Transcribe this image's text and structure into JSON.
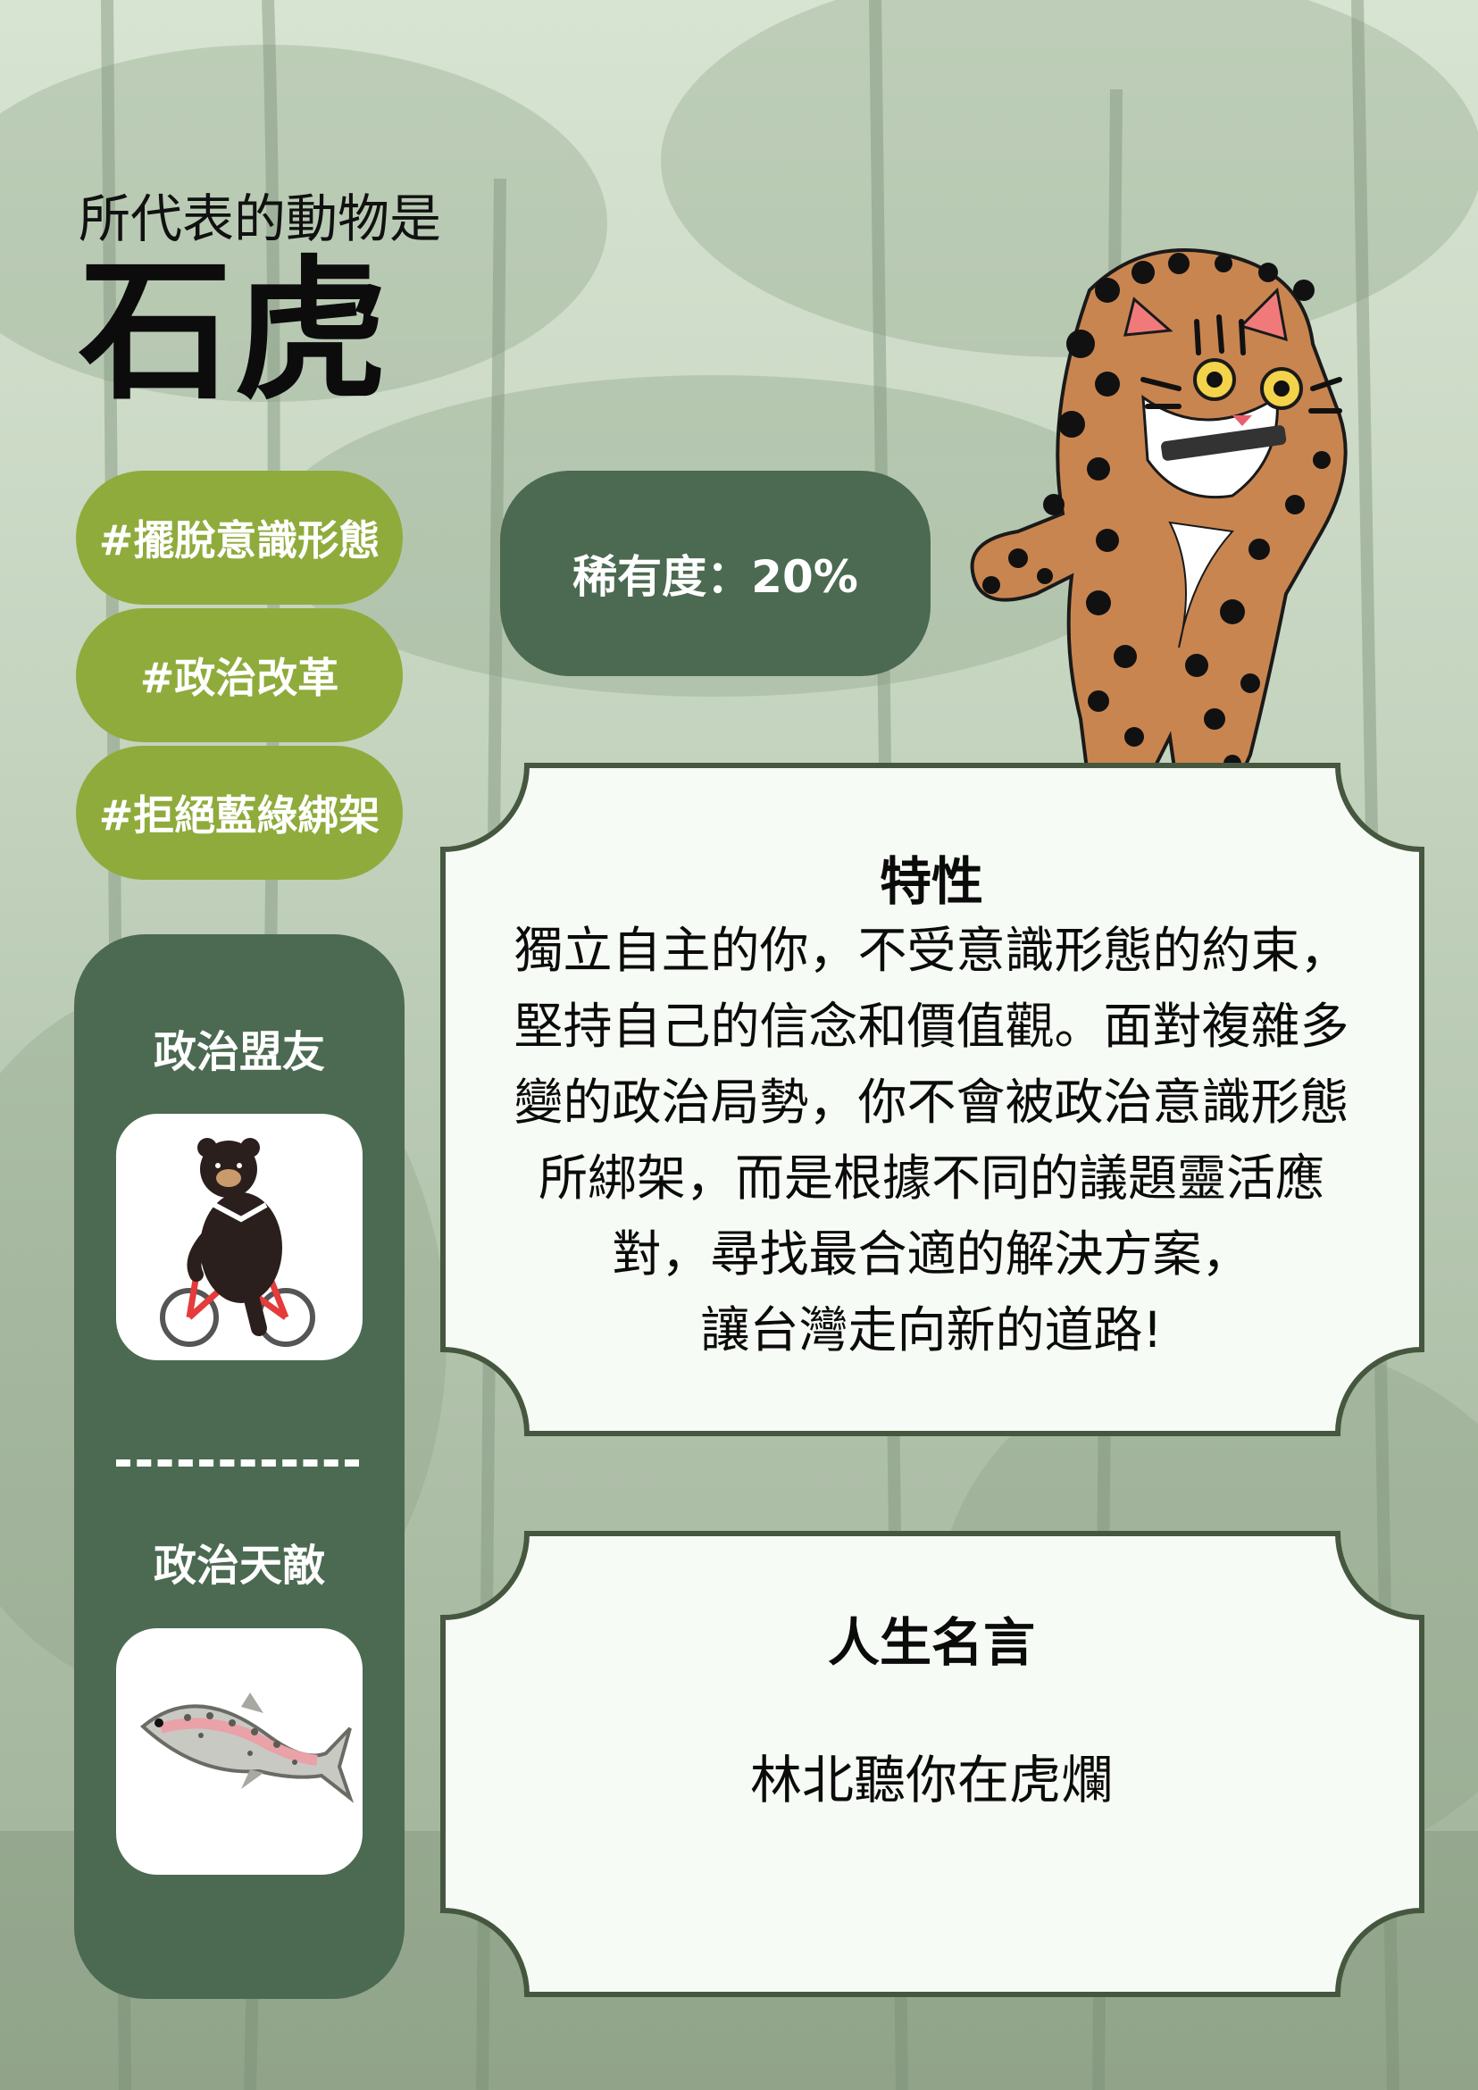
{
  "header": {
    "subtitle": "所代表的動物是",
    "animal_name": "石虎"
  },
  "tags": [
    "#擺脫意識形態",
    "#政治改革",
    "#拒絕藍綠綁架"
  ],
  "rarity": {
    "label": "稀有度：20%"
  },
  "relations": {
    "ally_label": "政治盟友",
    "ally_icon": "bear-on-bicycle-icon",
    "enemy_label": "政治天敵",
    "enemy_icon": "trout-fish-icon"
  },
  "trait_card": {
    "heading": "特性",
    "lines": [
      "獨立自主的你，不受意識形態的約束，",
      "堅持自己的信念和價值觀。面對複雜多",
      "變的政治局勢，你不會被政治意識形態",
      "所綁架，而是根據不同的議題靈活應",
      "對，尋找最合適的解決方案，",
      "讓台灣走向新的道路!"
    ]
  },
  "motto_card": {
    "heading": "人生名言",
    "quote": "林北聽你在虎爛"
  },
  "illustration": {
    "icon": "leopard-cat-icon"
  },
  "colors": {
    "dark_green": "#4b6a51",
    "tag_green": "#8fab3c",
    "card_bg": "#f7fbf5",
    "card_border": "#46573f"
  }
}
